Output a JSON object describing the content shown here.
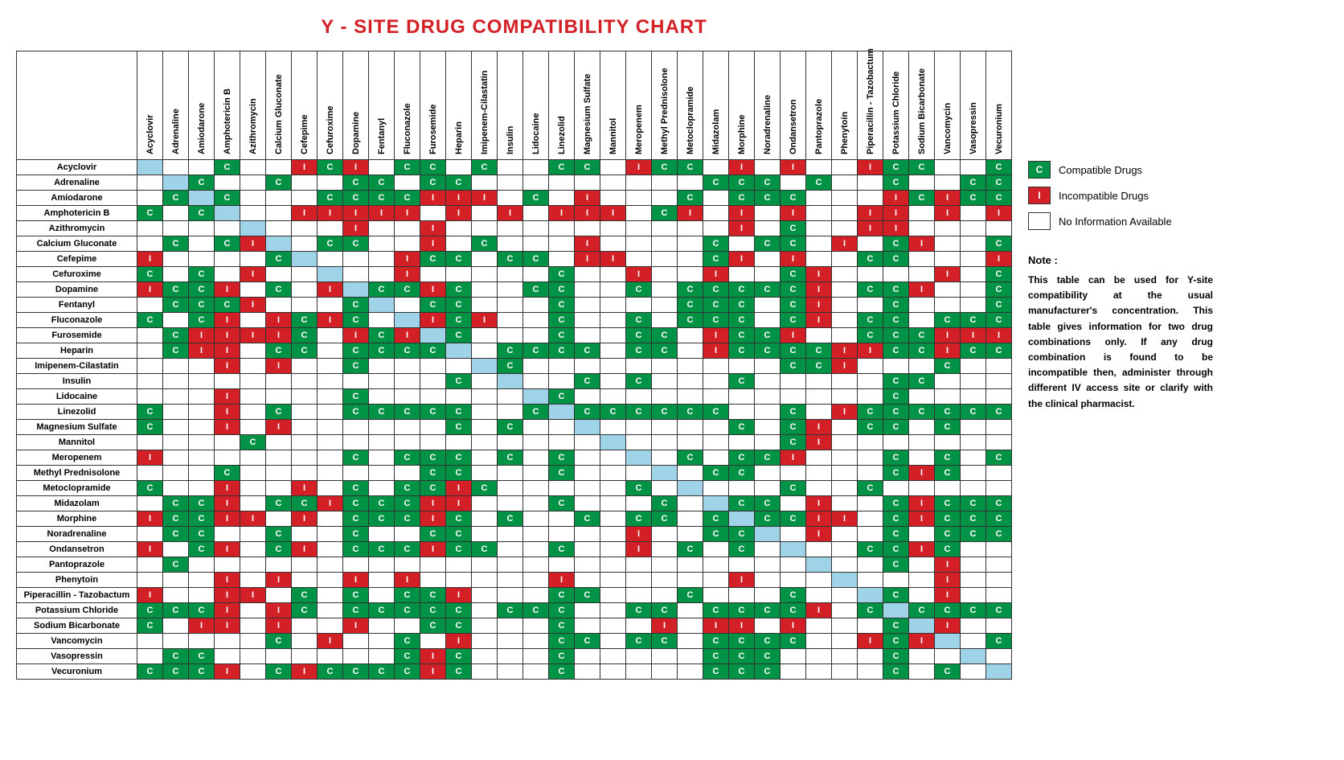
{
  "title": "Y - SITE DRUG COMPATIBILITY CHART",
  "title_color": "#d32027",
  "title_fontsize": 24,
  "colors": {
    "compatible": "#009245",
    "incompatible": "#d32027",
    "self": "#9fd4e8",
    "none": "#ffffff",
    "border": "#333333"
  },
  "legend": {
    "compatible": {
      "letter": "C",
      "label": "Compatible Drugs"
    },
    "incompatible": {
      "letter": "I",
      "label": "Incompatible Drugs"
    },
    "none": {
      "letter": "",
      "label": "No Information Available"
    }
  },
  "note_head": "Note :",
  "note_body": "This table can be used for Y-site compatibility at the usual manufacturer's concentration. This table gives information for two drug combinations only. If any drug combination is found to be incompatible then, administer through different IV access site or clarify with the clinical pharmacist.",
  "drugs": [
    "Acyclovir",
    "Adrenaline",
    "Amiodarone",
    "Amphotericin B",
    "Azithromycin",
    "Calcium Gluconate",
    "Cefepime",
    "Cefuroxime",
    "Dopamine",
    "Fentanyl",
    "Fluconazole",
    "Furosemide",
    "Heparin",
    "Imipenem-Cilastatin",
    "Insulin",
    "Lidocaine",
    "Linezolid",
    "Magnesium Sulfate",
    "Mannitol",
    "Meropenem",
    "Methyl Prednisolone",
    "Metoclopramide",
    "Midazolam",
    "Morphine",
    "Noradrenaline",
    "Ondansetron",
    "Pantoprazole",
    "Phenytoin",
    "Piperacillin - Tazobactum",
    "Potassium Chloride",
    "Sodium Bicarbonate",
    "Vancomycin",
    "Vasopressin",
    "Vecuronium"
  ],
  "matrix": [
    [
      "S",
      "",
      "",
      "C",
      "",
      "",
      "I",
      "C",
      "I",
      "",
      "C",
      "C",
      "",
      "C",
      "",
      "",
      "C",
      "C",
      "",
      "I",
      "C",
      "C",
      "",
      "I",
      "",
      "I",
      "",
      "",
      "I",
      "C",
      "C",
      "",
      "",
      "C"
    ],
    [
      "",
      "S",
      "C",
      "",
      "",
      "C",
      "",
      "",
      "C",
      "C",
      "",
      "C",
      "C",
      "",
      "",
      "",
      "",
      "",
      "",
      "",
      "",
      "",
      "C",
      "C",
      "C",
      "",
      "C",
      "",
      "",
      "C",
      "",
      "",
      "C",
      "C"
    ],
    [
      "",
      "C",
      "S",
      "C",
      "",
      "",
      "",
      "C",
      "C",
      "C",
      "C",
      "I",
      "I",
      "I",
      "",
      "C",
      "",
      "I",
      "",
      "",
      "",
      "C",
      "",
      "C",
      "C",
      "C",
      "",
      "",
      "",
      "I",
      "C",
      "I",
      "C",
      "C"
    ],
    [
      "C",
      "",
      "C",
      "S",
      "",
      "",
      "I",
      "I",
      "I",
      "I",
      "I",
      "",
      "I",
      "",
      "I",
      "",
      "I",
      "I",
      "I",
      "",
      "C",
      "I",
      "",
      "I",
      "",
      "I",
      "",
      "",
      "I",
      "I",
      "",
      "I",
      "",
      "I"
    ],
    [
      "",
      "",
      "",
      "",
      "S",
      "",
      "",
      "",
      "I",
      "",
      "",
      "I",
      "",
      "",
      "",
      "",
      "",
      "",
      "",
      "",
      "",
      "",
      "",
      "I",
      "",
      "C",
      "",
      "",
      "I",
      "I",
      "",
      "",
      "",
      ""
    ],
    [
      "",
      "C",
      "",
      "C",
      "I",
      "S",
      "",
      "C",
      "C",
      "",
      "",
      "I",
      "",
      "C",
      "",
      "",
      "",
      "I",
      "",
      "",
      "",
      "",
      "C",
      "",
      "C",
      "C",
      "",
      "I",
      "",
      "C",
      "I",
      "",
      "",
      "C"
    ],
    [
      "I",
      "",
      "",
      "",
      "",
      "C",
      "S",
      "",
      "",
      "",
      "I",
      "C",
      "C",
      "",
      "C",
      "C",
      "",
      "I",
      "I",
      "",
      "",
      "",
      "C",
      "I",
      "",
      "I",
      "",
      "",
      "C",
      "C",
      "",
      "",
      "",
      "I"
    ],
    [
      "C",
      "",
      "C",
      "",
      "I",
      "",
      "",
      "S",
      "",
      "",
      "I",
      "",
      "",
      "",
      "",
      "",
      "C",
      "",
      "",
      "I",
      "",
      "",
      "I",
      "",
      "",
      "C",
      "I",
      "",
      "",
      "",
      "",
      "I",
      "",
      "C"
    ],
    [
      "I",
      "C",
      "C",
      "I",
      "",
      "C",
      "",
      "I",
      "S",
      "C",
      "C",
      "I",
      "C",
      "",
      "",
      "C",
      "C",
      "",
      "",
      "C",
      "",
      "C",
      "C",
      "C",
      "C",
      "C",
      "I",
      "",
      "C",
      "C",
      "I",
      "",
      "",
      "C"
    ],
    [
      "",
      "C",
      "C",
      "C",
      "I",
      "",
      "",
      "",
      "C",
      "S",
      "",
      "C",
      "C",
      "",
      "",
      "",
      "C",
      "",
      "",
      "",
      "",
      "C",
      "C",
      "C",
      "",
      "C",
      "I",
      "",
      "",
      "C",
      "",
      "",
      "",
      "C"
    ],
    [
      "C",
      "",
      "C",
      "I",
      "",
      "I",
      "C",
      "I",
      "C",
      "",
      "S",
      "I",
      "C",
      "I",
      "",
      "",
      "C",
      "",
      "",
      "C",
      "",
      "C",
      "C",
      "C",
      "",
      "C",
      "I",
      "",
      "C",
      "C",
      "",
      "C",
      "C",
      "C"
    ],
    [
      "",
      "C",
      "I",
      "I",
      "I",
      "I",
      "C",
      "",
      "I",
      "C",
      "I",
      "S",
      "C",
      "",
      "",
      "",
      "C",
      "",
      "",
      "C",
      "C",
      "",
      "I",
      "C",
      "C",
      "I",
      "",
      "",
      "C",
      "C",
      "C",
      "I",
      "I",
      "I"
    ],
    [
      "",
      "C",
      "I",
      "I",
      "",
      "C",
      "C",
      "",
      "C",
      "C",
      "C",
      "C",
      "S",
      "",
      "C",
      "C",
      "C",
      "C",
      "",
      "C",
      "C",
      "",
      "I",
      "C",
      "C",
      "C",
      "C",
      "I",
      "I",
      "C",
      "C",
      "I",
      "C",
      "C"
    ],
    [
      "",
      "",
      "",
      "I",
      "",
      "I",
      "",
      "",
      "C",
      "",
      "",
      "",
      "",
      "S",
      "C",
      "",
      "",
      "",
      "",
      "",
      "",
      "",
      "",
      "",
      "",
      "C",
      "C",
      "I",
      "",
      "",
      "",
      "C",
      "",
      ""
    ],
    [
      "",
      "",
      "",
      "",
      "",
      "",
      "",
      "",
      "",
      "",
      "",
      "",
      "C",
      "",
      "S",
      "",
      "",
      "C",
      "",
      "C",
      "",
      "",
      "",
      "C",
      "",
      "",
      "",
      "",
      "",
      "C",
      "C",
      "",
      "",
      ""
    ],
    [
      "",
      "",
      "",
      "I",
      "",
      "",
      "",
      "",
      "C",
      "",
      "",
      "",
      "",
      "",
      "",
      "S",
      "C",
      "",
      "",
      "",
      "",
      "",
      "",
      "",
      "",
      "",
      "",
      "",
      "",
      "C",
      "",
      "",
      "",
      ""
    ],
    [
      "C",
      "",
      "",
      "I",
      "",
      "C",
      "",
      "",
      "C",
      "C",
      "C",
      "C",
      "C",
      "",
      "",
      "C",
      "S",
      "C",
      "C",
      "C",
      "C",
      "C",
      "C",
      "",
      "",
      "C",
      "",
      "I",
      "C",
      "C",
      "C",
      "C",
      "C",
      "C"
    ],
    [
      "C",
      "",
      "",
      "I",
      "",
      "I",
      "",
      "",
      "",
      "",
      "",
      "",
      "C",
      "",
      "C",
      "",
      "",
      "S",
      "",
      "",
      "",
      "",
      "",
      "C",
      "",
      "C",
      "I",
      "",
      "C",
      "C",
      "",
      "C",
      "",
      ""
    ],
    [
      "",
      "",
      "",
      "",
      "C",
      "",
      "",
      "",
      "",
      "",
      "",
      "",
      "",
      "",
      "",
      "",
      "",
      "",
      "S",
      "",
      "",
      "",
      "",
      "",
      "",
      "C",
      "I",
      "",
      "",
      "",
      "",
      "",
      "",
      ""
    ],
    [
      "I",
      "",
      "",
      "",
      "",
      "",
      "",
      "",
      "C",
      "",
      "C",
      "C",
      "C",
      "",
      "C",
      "",
      "C",
      "",
      "",
      "S",
      "",
      "C",
      "",
      "C",
      "C",
      "I",
      "",
      "",
      "",
      "C",
      "",
      "C",
      "",
      "C"
    ],
    [
      "",
      "",
      "",
      "C",
      "",
      "",
      "",
      "",
      "",
      "",
      "",
      "C",
      "C",
      "",
      "",
      "",
      "C",
      "",
      "",
      "",
      "S",
      "",
      "C",
      "C",
      "",
      "",
      "",
      "",
      "",
      "C",
      "I",
      "C",
      "",
      ""
    ],
    [
      "C",
      "",
      "",
      "I",
      "",
      "",
      "I",
      "",
      "C",
      "",
      "C",
      "C",
      "I",
      "C",
      "",
      "",
      "",
      "",
      "",
      "C",
      "",
      "S",
      "",
      "",
      "",
      "C",
      "",
      "",
      "C",
      "",
      "",
      "",
      "",
      ""
    ],
    [
      "",
      "C",
      "C",
      "I",
      "",
      "C",
      "C",
      "I",
      "C",
      "C",
      "C",
      "I",
      "I",
      "",
      "",
      "",
      "C",
      "",
      "",
      "",
      "C",
      "",
      "S",
      "C",
      "C",
      "",
      "I",
      "",
      "",
      "C",
      "I",
      "C",
      "C",
      "C"
    ],
    [
      "I",
      "C",
      "C",
      "I",
      "I",
      "",
      "I",
      "",
      "C",
      "C",
      "C",
      "I",
      "C",
      "",
      "C",
      "",
      "",
      "C",
      "",
      "C",
      "C",
      "",
      "C",
      "S",
      "C",
      "C",
      "I",
      "I",
      "",
      "C",
      "I",
      "C",
      "C",
      "C"
    ],
    [
      "",
      "C",
      "C",
      "",
      "",
      "C",
      "",
      "",
      "C",
      "",
      "",
      "C",
      "C",
      "",
      "",
      "",
      "",
      "",
      "",
      "I",
      "",
      "",
      "C",
      "C",
      "S",
      "",
      "I",
      "",
      "",
      "C",
      "",
      "C",
      "C",
      "C"
    ],
    [
      "I",
      "",
      "C",
      "I",
      "",
      "C",
      "I",
      "",
      "C",
      "C",
      "C",
      "I",
      "C",
      "C",
      "",
      "",
      "C",
      "",
      "",
      "I",
      "",
      "C",
      "",
      "C",
      "",
      "S",
      "",
      "",
      "C",
      "C",
      "I",
      "C",
      "",
      ""
    ],
    [
      "",
      "C",
      "",
      "",
      "",
      "",
      "",
      "",
      "",
      "",
      "",
      "",
      "",
      "",
      "",
      "",
      "",
      "",
      "",
      "",
      "",
      "",
      "",
      "",
      "",
      "",
      "S",
      "",
      "",
      "C",
      "",
      "I",
      "",
      ""
    ],
    [
      "",
      "",
      "",
      "I",
      "",
      "I",
      "",
      "",
      "I",
      "",
      "I",
      "",
      "",
      "",
      "",
      "",
      "I",
      "",
      "",
      "",
      "",
      "",
      "",
      "I",
      "",
      "",
      "",
      "S",
      "",
      "",
      "",
      "I",
      "",
      ""
    ],
    [
      "I",
      "",
      "",
      "I",
      "I",
      "",
      "C",
      "",
      "C",
      "",
      "C",
      "C",
      "I",
      "",
      "",
      "",
      "C",
      "C",
      "",
      "",
      "",
      "C",
      "",
      "",
      "",
      "C",
      "",
      "",
      "S",
      "C",
      "",
      "I",
      "",
      ""
    ],
    [
      "C",
      "C",
      "C",
      "I",
      "",
      "I",
      "C",
      "",
      "C",
      "C",
      "C",
      "C",
      "C",
      "",
      "C",
      "C",
      "C",
      "",
      "",
      "C",
      "C",
      "",
      "C",
      "C",
      "C",
      "C",
      "I",
      "",
      "C",
      "S",
      "C",
      "C",
      "C",
      "C"
    ],
    [
      "C",
      "",
      "I",
      "I",
      "",
      "I",
      "",
      "",
      "I",
      "",
      "",
      "C",
      "C",
      "",
      "",
      "",
      "C",
      "",
      "",
      "",
      "I",
      "",
      "I",
      "I",
      "",
      "I",
      "",
      "",
      "",
      "C",
      "S",
      "I",
      "",
      ""
    ],
    [
      "",
      "",
      "",
      "",
      "",
      "C",
      "",
      "I",
      "",
      "",
      "C",
      "",
      "I",
      "",
      "",
      "",
      "C",
      "C",
      "",
      "C",
      "C",
      "",
      "C",
      "C",
      "C",
      "C",
      "",
      "",
      "I",
      "C",
      "I",
      "S",
      "",
      "C"
    ],
    [
      "",
      "C",
      "C",
      "",
      "",
      "",
      "",
      "",
      "",
      "",
      "C",
      "I",
      "C",
      "",
      "",
      "",
      "C",
      "",
      "",
      "",
      "",
      "",
      "C",
      "C",
      "C",
      "",
      "",
      "",
      "",
      "C",
      "",
      "",
      "S",
      ""
    ],
    [
      "C",
      "C",
      "C",
      "I",
      "",
      "C",
      "I",
      "C",
      "C",
      "C",
      "C",
      "I",
      "C",
      "",
      "",
      "",
      "C",
      "",
      "",
      "",
      "",
      "",
      "C",
      "C",
      "C",
      "",
      "",
      "",
      "",
      "C",
      "",
      "C",
      "",
      "S"
    ]
  ]
}
